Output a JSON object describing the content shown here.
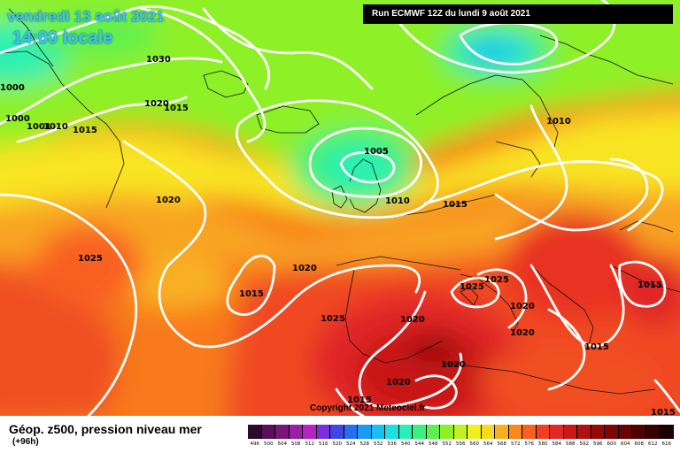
{
  "header": {
    "date": "vendredi 13 août 2021",
    "time": "14:00 locale",
    "run": "Run ECMWF 12Z du lundi 9 août 2021"
  },
  "copyright": "Copyright 2021 Meteociel.fr",
  "legend": {
    "title": "Géop. z500, pression niveau mer",
    "subtitle": "(+96h)",
    "ticks": [
      "496",
      "500",
      "504",
      "508",
      "512",
      "516",
      "520",
      "524",
      "528",
      "532",
      "536",
      "540",
      "544",
      "548",
      "552",
      "556",
      "560",
      "564",
      "568",
      "572",
      "576",
      "580",
      "584",
      "588",
      "592",
      "596",
      "600",
      "604",
      "608",
      "612",
      "616"
    ],
    "colors": [
      "#2b0a2b",
      "#5a0f5a",
      "#7a157a",
      "#9b1ea6",
      "#b523c2",
      "#7a2fd8",
      "#3f45e6",
      "#2a6ef0",
      "#1c9af3",
      "#18c0f0",
      "#1fe0e0",
      "#29f0b4",
      "#3cf080",
      "#5ef050",
      "#8ef028",
      "#c2f020",
      "#eef020",
      "#f8d820",
      "#f8b020",
      "#f88820",
      "#f86020",
      "#f04020",
      "#e02828",
      "#c81818",
      "#b01010",
      "#980808",
      "#800404",
      "#6a0202",
      "#500000",
      "#380000",
      "#1a0000"
    ]
  },
  "isobars": [
    "1030",
    "1020",
    "1015",
    "1000",
    "1000",
    "1001",
    "1010",
    "1015",
    "1005",
    "1010",
    "1015",
    "1010",
    "1020",
    "1025",
    "1020",
    "1015",
    "1025",
    "1020",
    "1025",
    "1025",
    "1020",
    "1020",
    "1020",
    "1015",
    "1020",
    "1015",
    "1015",
    "1015",
    "1015",
    "1020",
    "1020"
  ]
}
